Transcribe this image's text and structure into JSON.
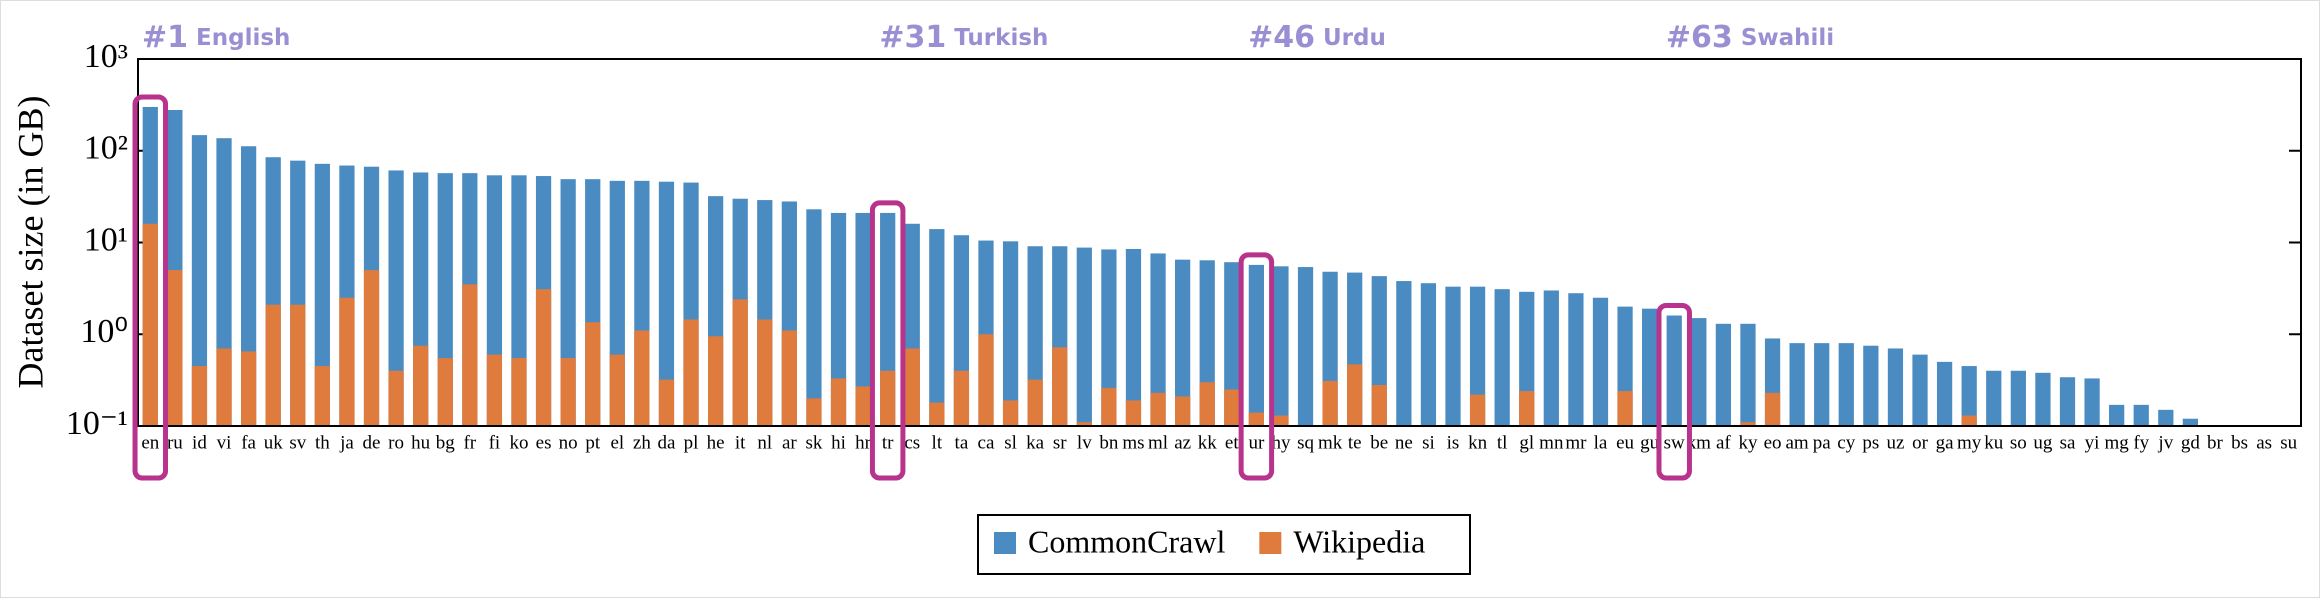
{
  "chart_data": {
    "type": "bar",
    "y_label": "Dataset size (in GB)",
    "log_y": true,
    "overlap": true,
    "categories": [
      "en",
      "ru",
      "id",
      "vi",
      "fa",
      "uk",
      "sv",
      "th",
      "ja",
      "de",
      "ro",
      "hu",
      "bg",
      "fr",
      "fi",
      "ko",
      "es",
      "no",
      "pt",
      "el",
      "zh",
      "da",
      "pl",
      "he",
      "it",
      "nl",
      "ar",
      "sk",
      "hi",
      "hr",
      "tr",
      "cs",
      "lt",
      "ta",
      "ca",
      "sl",
      "ka",
      "sr",
      "lv",
      "bn",
      "ms",
      "ml",
      "az",
      "kk",
      "et",
      "ur",
      "hy",
      "sq",
      "mk",
      "te",
      "be",
      "ne",
      "si",
      "is",
      "kn",
      "tl",
      "gl",
      "mn",
      "mr",
      "la",
      "eu",
      "gu",
      "sw",
      "km",
      "af",
      "ky",
      "eo",
      "am",
      "pa",
      "cy",
      "ps",
      "uz",
      "or",
      "ga",
      "my",
      "ku",
      "so",
      "ug",
      "sa",
      "yi",
      "mg",
      "fy",
      "jv",
      "gd",
      "br",
      "bs",
      "as",
      "su"
    ],
    "series": [
      {
        "name": "CommonCrawl",
        "color": "#4a8bc2",
        "values": [
          300,
          278,
          148,
          137,
          112,
          85,
          78,
          72,
          69,
          67,
          61,
          58,
          57,
          57,
          54,
          54,
          53,
          49,
          49,
          47,
          47,
          46,
          45,
          32,
          30,
          29,
          28,
          23,
          21,
          21,
          21,
          16,
          14,
          12,
          10.5,
          10.3,
          9.1,
          9.1,
          8.8,
          8.4,
          8.5,
          7.6,
          6.5,
          6.4,
          6.1,
          5.7,
          5.5,
          5.4,
          4.8,
          4.7,
          4.3,
          3.8,
          3.6,
          3.3,
          3.3,
          3.1,
          2.9,
          3.0,
          2.8,
          2.5,
          2.0,
          1.9,
          1.6,
          1.5,
          1.3,
          1.3,
          0.9,
          0.8,
          0.8,
          0.8,
          0.75,
          0.7,
          0.6,
          0.5,
          0.45,
          0.4,
          0.4,
          0.38,
          0.34,
          0.33,
          0.17,
          0.17,
          0.15,
          0.12,
          0.1,
          0.1,
          0.1,
          0.1
        ]
      },
      {
        "name": "Wikipedia",
        "color": "#e07b3e",
        "values": [
          16,
          5,
          0.45,
          0.7,
          0.65,
          2.1,
          2.1,
          0.45,
          2.5,
          5,
          0.4,
          0.75,
          0.55,
          3.5,
          0.6,
          0.55,
          3.1,
          0.55,
          1.35,
          0.6,
          1.1,
          0.32,
          1.45,
          0.95,
          2.4,
          1.45,
          1.1,
          0.2,
          0.33,
          0.27,
          0.4,
          0.7,
          0.18,
          0.4,
          1.0,
          0.19,
          0.32,
          0.72,
          0.11,
          0.26,
          0.19,
          0.23,
          0.21,
          0.3,
          0.25,
          0.14,
          0.13,
          null,
          0.31,
          0.47,
          0.28,
          null,
          null,
          null,
          0.22,
          null,
          0.24,
          null,
          null,
          null,
          0.24,
          null,
          null,
          null,
          null,
          0.11,
          0.23,
          null,
          null,
          null,
          null,
          null,
          null,
          null,
          0.13,
          null,
          null,
          null,
          null,
          null,
          null,
          null,
          null,
          null,
          null,
          null,
          null,
          null
        ]
      }
    ],
    "ylim": [
      0.1,
      1000
    ],
    "yticks": [
      {
        "value": 0.1,
        "label": "10⁻¹"
      },
      {
        "value": 1,
        "label": "10⁰"
      },
      {
        "value": 10,
        "label": "10¹"
      },
      {
        "value": 100,
        "label": "10²"
      },
      {
        "value": 1000,
        "label": "10³"
      }
    ],
    "annotations": [
      {
        "rank": "#1",
        "name": "English"
      },
      {
        "rank": "#31",
        "name": "Turkish"
      },
      {
        "rank": "#46",
        "name": "Urdu"
      },
      {
        "rank": "#63",
        "name": "Swahili"
      }
    ]
  }
}
